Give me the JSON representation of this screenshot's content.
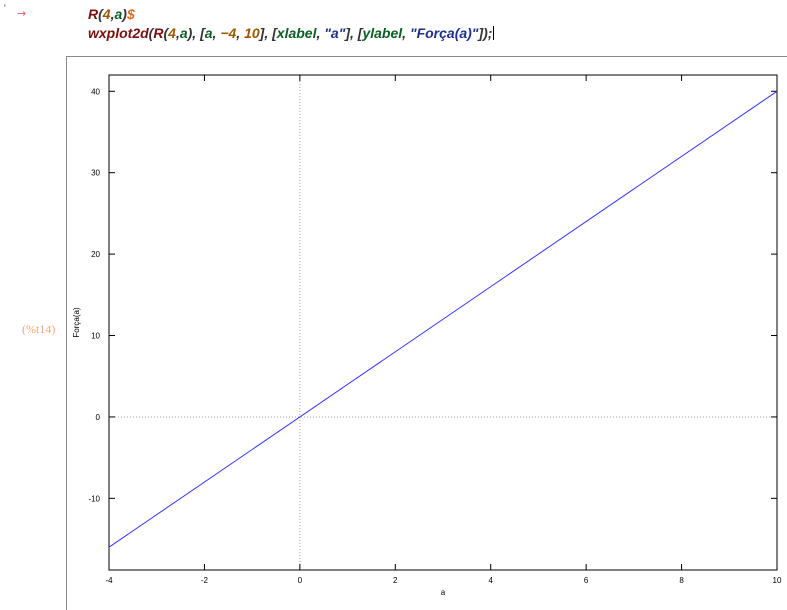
{
  "cell": {
    "input_marker": "→",
    "line1": {
      "func": "R",
      "open": "(",
      "arg1": "4",
      "comma": ",",
      "arg2": "a",
      "close": ")",
      "terminator": "$"
    },
    "line2": {
      "func": "wxplot2d",
      "open": "(",
      "inner_func": "R",
      "inner_open": "(",
      "inner_arg1": "4",
      "inner_comma": ",",
      "inner_arg2": "a",
      "inner_close": ")",
      "sep1": ", ",
      "range_open": "[",
      "range_var": "a",
      "range_sep1": ", ",
      "range_min": "−4",
      "range_sep2": ", ",
      "range_max": "10",
      "range_close": "]",
      "sep2": ", ",
      "xl_open": "[",
      "xl_key": "xlabel",
      "xl_sep": ", ",
      "xl_val": "\"a\"",
      "xl_close": "]",
      "sep3": ", ",
      "yl_open": "[",
      "yl_key": "ylabel",
      "yl_sep": ", ",
      "yl_val": "\"Força(a)\"",
      "yl_close": "]",
      "close": ")",
      "terminator": ";"
    },
    "output_label": "(%t14)"
  },
  "colors": {
    "line": "#3333ff",
    "axis_zero": "#a0a0a0",
    "frame": "#000000",
    "function_name": "#7a0f10",
    "variable": "#0a5f22",
    "number": "#9a5a00",
    "string": "#1e2f8c",
    "output_label": "#f0a97a"
  },
  "chart_data": {
    "type": "line",
    "xlabel": "a",
    "ylabel": "Força(a)",
    "xlim": [
      -4,
      10
    ],
    "ylim": [
      -18.8,
      42
    ],
    "xticks": [
      -4,
      -2,
      0,
      2,
      4,
      6,
      8,
      10
    ],
    "yticks": [
      -10,
      0,
      10,
      20,
      30,
      40
    ],
    "zero_axes": true,
    "grid": false,
    "series": [
      {
        "x": [
          -4,
          10
        ],
        "y": [
          -16,
          40
        ]
      }
    ]
  }
}
